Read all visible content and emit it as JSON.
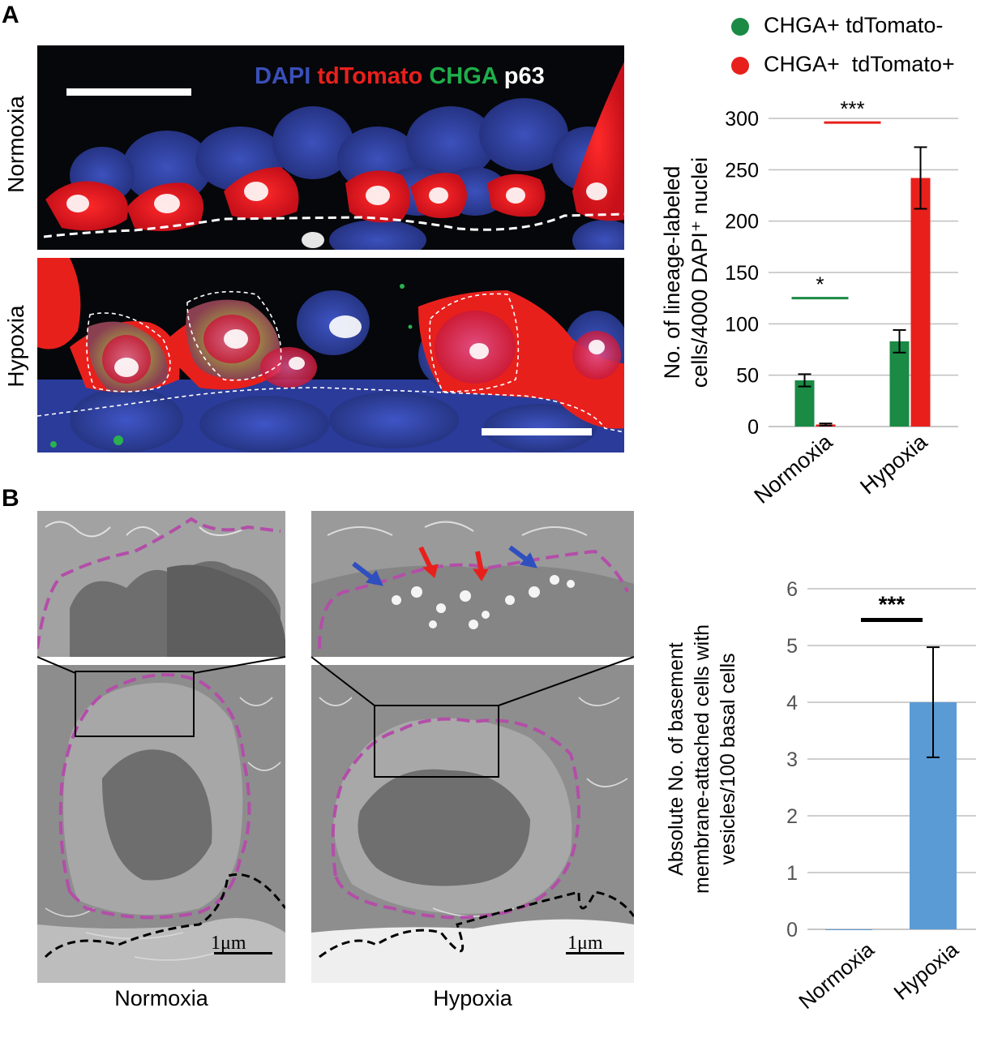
{
  "panel_a": {
    "letter": "A",
    "stain_labels": {
      "dapi": "DAPI",
      "tdtomato": "tdTomato",
      "chga": "CHGA",
      "p63": "p63"
    },
    "stain_colors": {
      "dapi": "#3a4fb8",
      "tdtomato": "#e8201c",
      "chga": "#1fae4a",
      "p63": "#ffffff"
    },
    "row_labels": {
      "top": "Normoxia",
      "bottom": "Hypoxia"
    }
  },
  "panel_b": {
    "letter": "B",
    "captions": {
      "left": "Normoxia",
      "right": "Hypoxia"
    },
    "scale_bar_labels": {
      "left": "1μm",
      "right": "1μm"
    }
  },
  "chart_data": [
    {
      "type": "bar",
      "categories": [
        "Normoxia",
        "Hypoxia"
      ],
      "series": [
        {
          "name": "CHGA+ tdTomato-",
          "color": "#1a8a45",
          "values": [
            45,
            83
          ],
          "errors": [
            6,
            11
          ]
        },
        {
          "name": "CHGA+  tdTomato+",
          "color": "#e8201c",
          "values": [
            2,
            242
          ],
          "errors": [
            1,
            30
          ]
        }
      ],
      "ylabel": "No. of lineage-labeled cells/4000 DAPI⁺ nuclei",
      "ylabel_lines": [
        "No. of lineage-labeled",
        "cells/4000 DAPI⁺ nuclei"
      ],
      "ylim": [
        0,
        300
      ],
      "yticks": [
        0,
        50,
        100,
        150,
        200,
        250,
        300
      ],
      "grid": true,
      "legend": "top",
      "annotations": [
        {
          "text": "*",
          "pair": "Normoxia",
          "color": "#1a8a45"
        },
        {
          "text": "***",
          "pair": "Hypoxia",
          "color": "#e8201c"
        }
      ]
    },
    {
      "type": "bar",
      "categories": [
        "Normoxia",
        "Hypoxia"
      ],
      "series": [
        {
          "name": "",
          "color": "#5b9bd5",
          "values": [
            0,
            4
          ],
          "errors": [
            0,
            0.97
          ]
        }
      ],
      "ylabel": "Absolute No. of basement membrane-attached cells with vesicles/100 basal cells",
      "ylabel_lines": [
        "Absolute No. of basement",
        "membrane-attached cells with",
        "vesicles/100  basal cells"
      ],
      "ylim": [
        0,
        6
      ],
      "yticks": [
        0,
        1,
        2,
        3,
        4,
        5,
        6
      ],
      "grid": true,
      "annotations": [
        {
          "text": "***",
          "color": "#000000"
        }
      ]
    }
  ]
}
